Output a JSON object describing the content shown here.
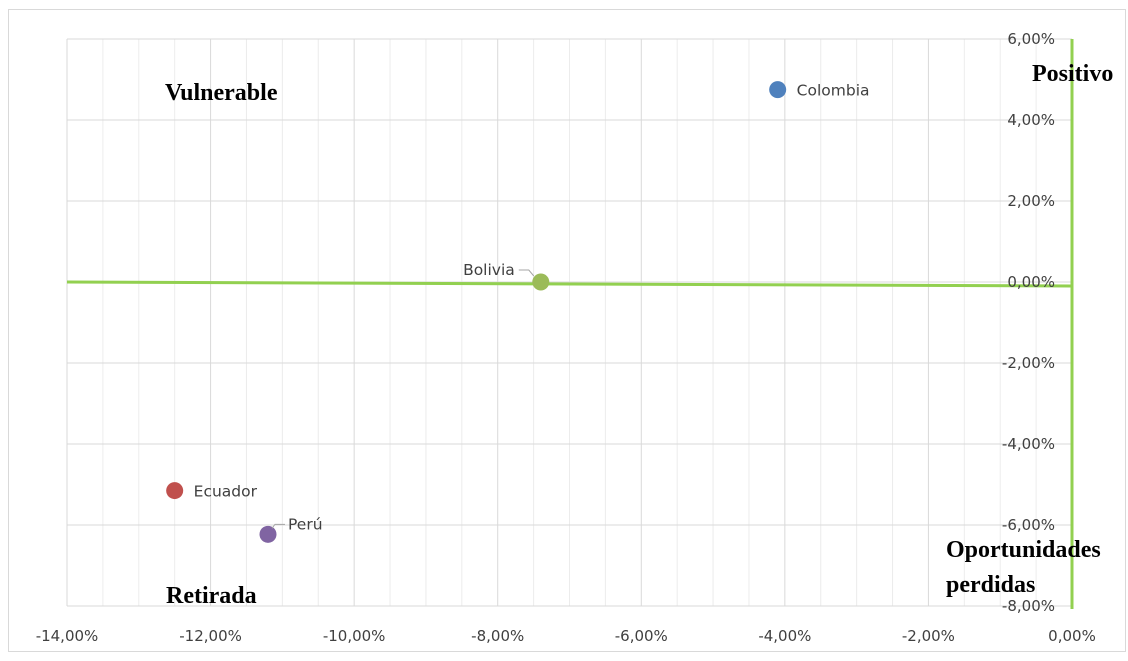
{
  "chart_data": {
    "type": "scatter",
    "title": "",
    "xlabel": "",
    "ylabel": "",
    "xlim": [
      -0.14,
      0
    ],
    "ylim": [
      -0.08,
      0.06
    ],
    "x_ticks": [
      -0.14,
      -0.12,
      -0.1,
      -0.08,
      -0.06,
      -0.04,
      -0.02,
      0
    ],
    "x_tick_labels": [
      "-14,00%",
      "-12,00%",
      "-10,00%",
      "-8,00%",
      "-6,00%",
      "-4,00%",
      "-2,00%",
      "0,00%"
    ],
    "y_ticks": [
      0.06,
      0.04,
      0.02,
      0,
      -0.02,
      -0.04,
      -0.06,
      -0.08
    ],
    "y_tick_labels": [
      "6,00%",
      "4,00%",
      "2,00%",
      "0,00%",
      "-2,00%",
      "-4,00%",
      "-6,00%",
      "-8,00%"
    ],
    "grid": true,
    "points": [
      {
        "label": "Colombia",
        "x": -0.041,
        "y": 0.0475,
        "color": "#4f81bd"
      },
      {
        "label": "Bolivia",
        "x": -0.074,
        "y": 0.0,
        "color": "#9bbb59"
      },
      {
        "label": "Ecuador",
        "x": -0.125,
        "y": -0.0515,
        "color": "#c0504d"
      },
      {
        "label": "Perú",
        "x": -0.112,
        "y": -0.0623,
        "color": "#8064a2"
      }
    ],
    "reference_lines": {
      "color": "#92d050",
      "horizontal_at": 0,
      "vertical_at": 0
    },
    "annotations": [
      "Vulnerable",
      "Positivo",
      "Retirada",
      "Oportunidades perdidas"
    ]
  }
}
